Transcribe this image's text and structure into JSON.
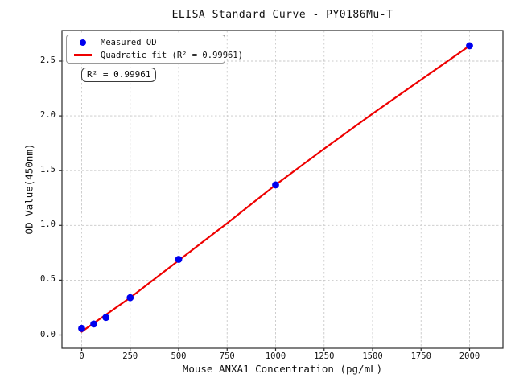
{
  "chart_data": {
    "type": "scatter",
    "title": "ELISA Standard Curve - PY0186Mu-T",
    "xlabel": "Mouse ANXA1 Concentration (pg/mL)",
    "ylabel": "OD Value(450nm)",
    "xlim": [
      -100,
      2170
    ],
    "ylim": [
      -0.12,
      2.78
    ],
    "x_ticks": [
      0,
      250,
      500,
      750,
      1000,
      1250,
      1500,
      1750,
      2000
    ],
    "y_ticks": [
      0.0,
      0.5,
      1.0,
      1.5,
      2.0,
      2.5
    ],
    "grid": true,
    "grid_style": "dashed",
    "legend_position": "upper left",
    "annotation": "R² = 0.99961",
    "r_squared": 0.99961,
    "series": [
      {
        "name": "Measured OD",
        "type": "scatter",
        "color": "#0000ee",
        "x": [
          0,
          62.5,
          125,
          250,
          500,
          1000,
          2000
        ],
        "y": [
          0.06,
          0.1,
          0.16,
          0.34,
          0.69,
          1.37,
          2.64
        ]
      },
      {
        "name": "Quadratic fit (R² = 0.99961)",
        "type": "line",
        "color": "#ee0000",
        "x": [
          0,
          250,
          500,
          750,
          1000,
          1250,
          1500,
          1750,
          2000
        ],
        "y": [
          0.03,
          0.34,
          0.68,
          1.02,
          1.37,
          1.7,
          2.02,
          2.33,
          2.64
        ]
      }
    ],
    "colors": {
      "grid": "#c9c9c9",
      "axis_border": "#2b2b2b",
      "text": "#111111",
      "background": "#ffffff"
    }
  }
}
